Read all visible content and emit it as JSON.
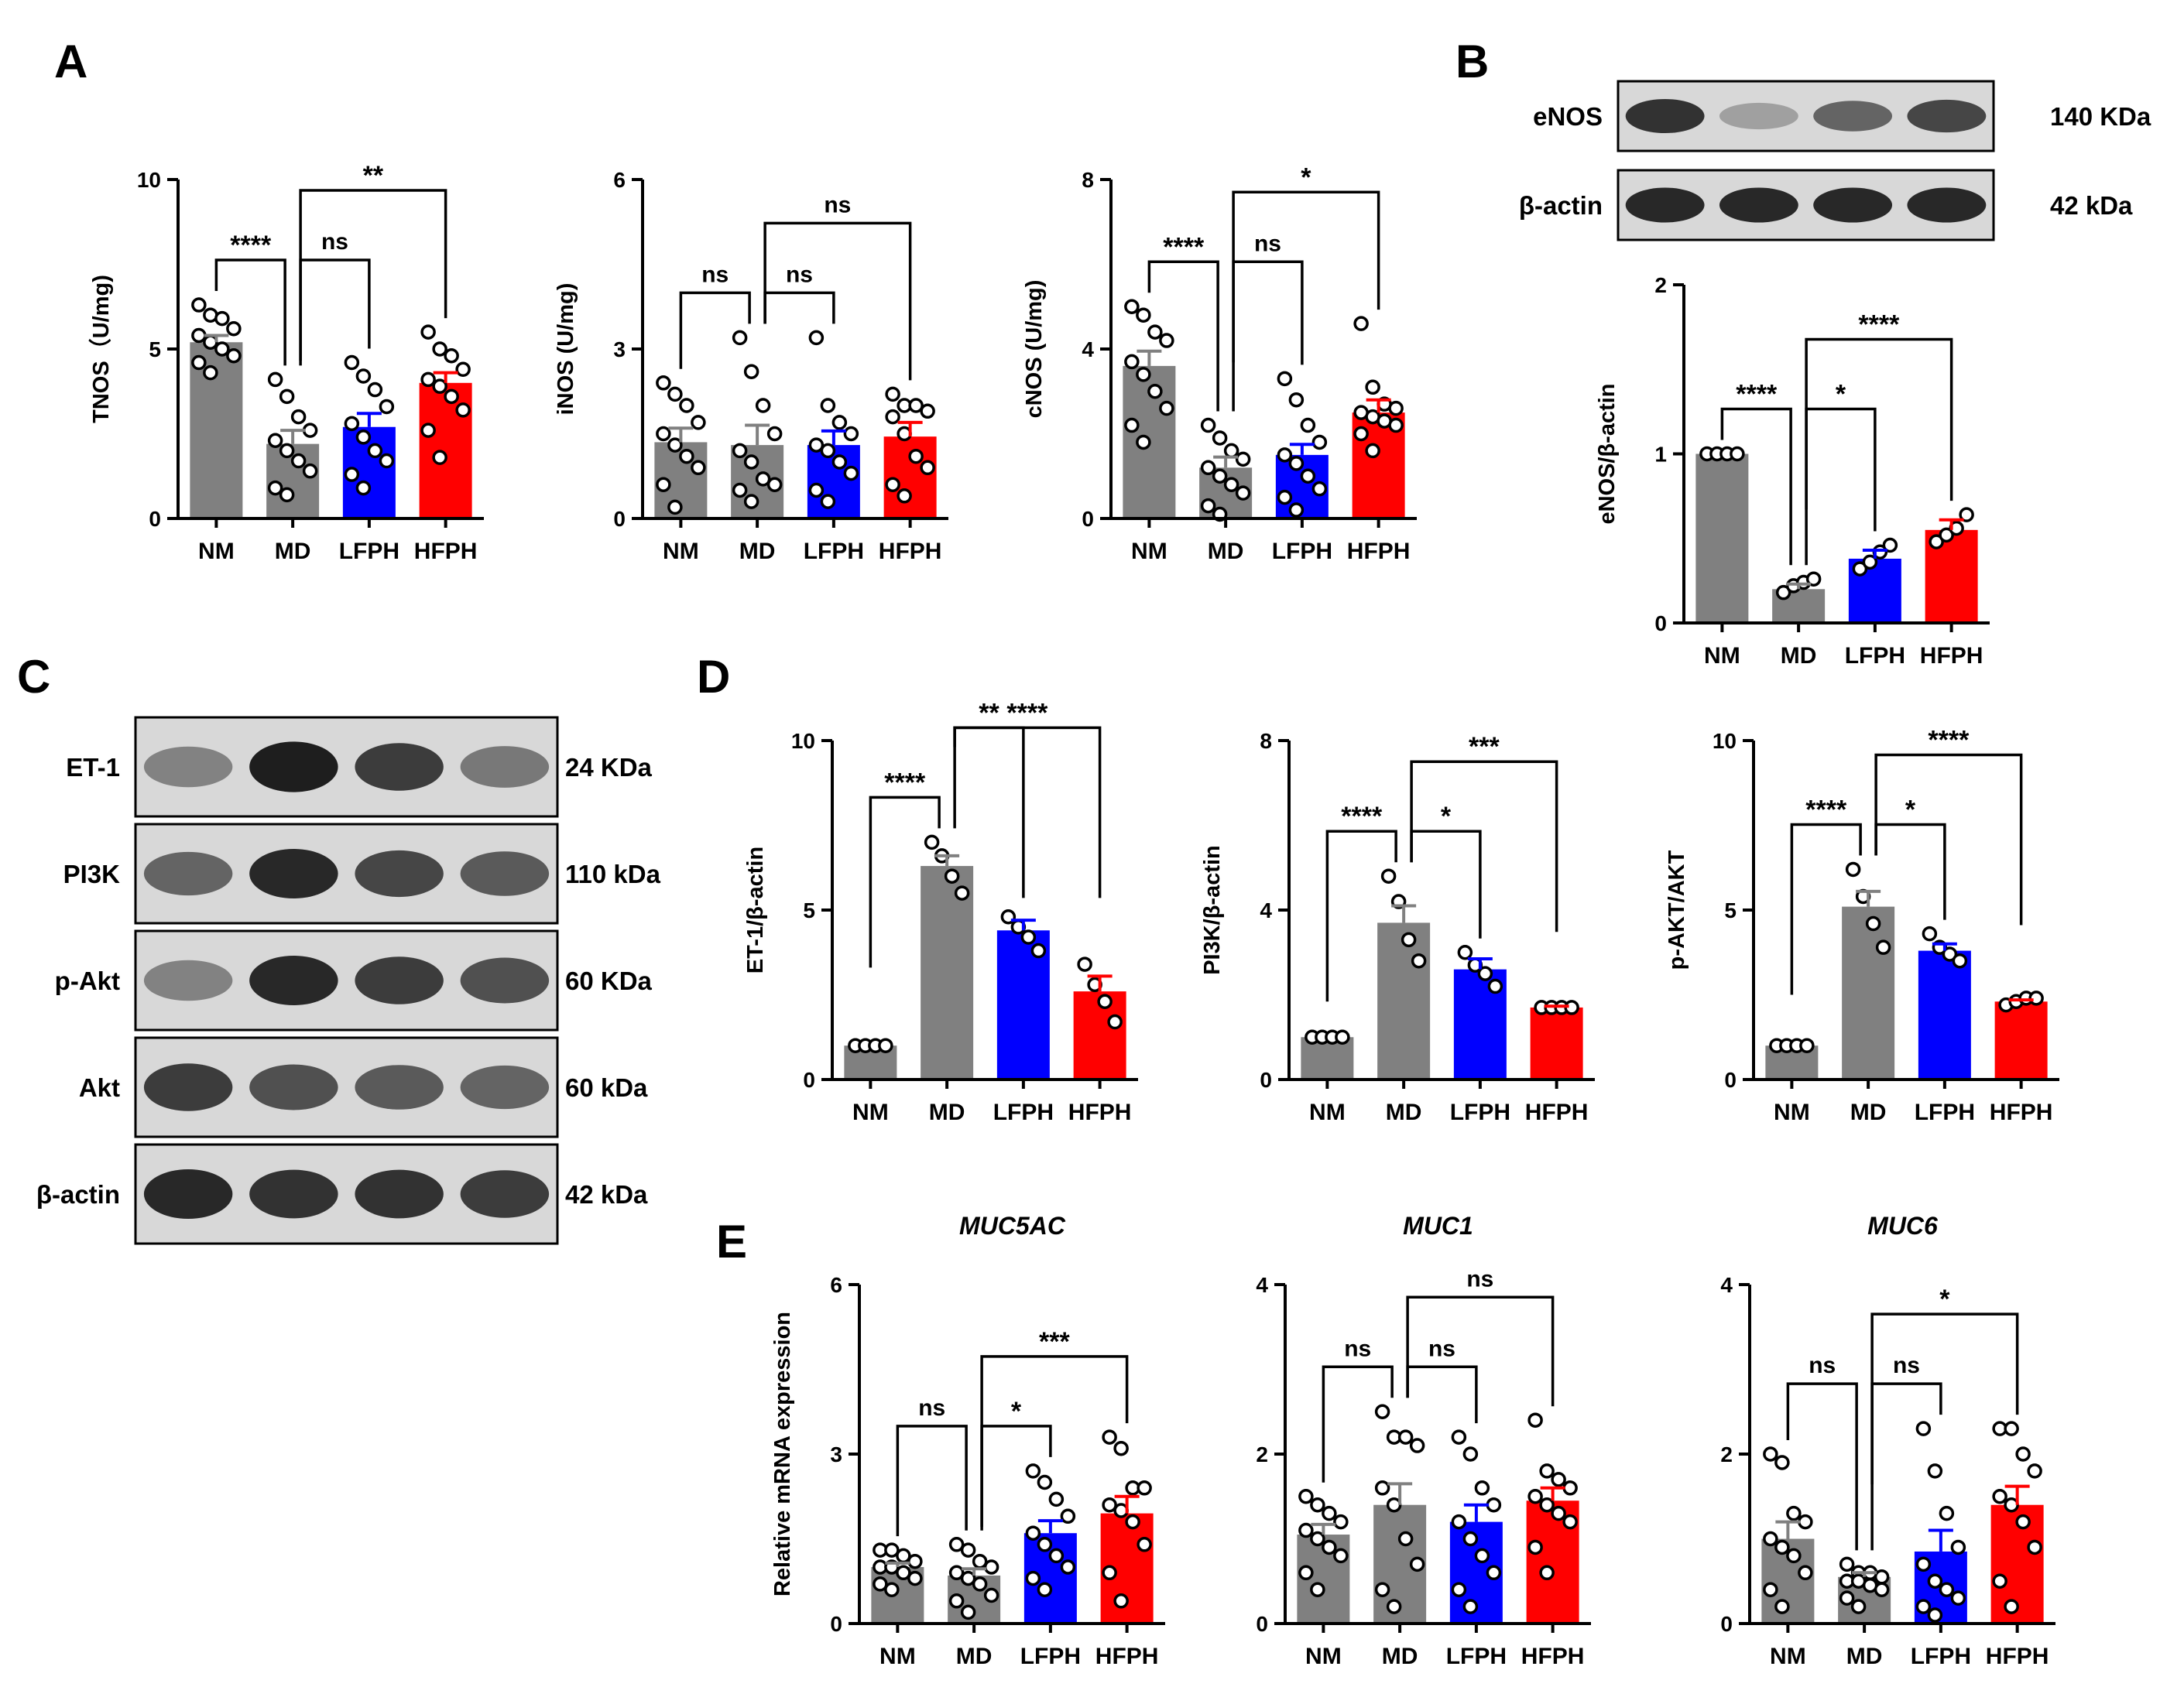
{
  "colors": {
    "NM": "#808080",
    "MD": "#808080",
    "LFPH": "#0000ff",
    "HFPH": "#ff0000"
  },
  "panel_labels": [
    "A",
    "B",
    "C",
    "D",
    "E"
  ],
  "chart_data": [
    {
      "id": "tnos",
      "type": "bar",
      "panel": "A",
      "title": "",
      "ylabel": "TNOS（U/mg)",
      "categories": [
        "NM",
        "MD",
        "LFPH",
        "HFPH"
      ],
      "yticks": [
        0,
        5,
        10
      ],
      "ylim": [
        0,
        10
      ],
      "values": [
        5.2,
        2.2,
        2.7,
        4.0
      ],
      "errors": [
        0.2,
        0.4,
        0.4,
        0.3
      ],
      "points": [
        [
          6.3,
          6.0,
          5.9,
          5.6,
          5.4,
          5.2,
          5.0,
          4.8,
          4.6,
          4.3
        ],
        [
          4.1,
          3.6,
          3.0,
          2.6,
          2.3,
          2.0,
          1.7,
          1.4,
          0.9,
          0.7
        ],
        [
          4.6,
          4.2,
          3.8,
          3.3,
          2.8,
          2.4,
          2.0,
          1.7,
          1.3,
          0.9
        ],
        [
          5.5,
          5.0,
          4.8,
          4.4,
          4.1,
          3.9,
          3.6,
          3.2,
          2.6,
          1.8
        ]
      ],
      "comparisons": [
        {
          "from": 0,
          "to": 1,
          "label": "****"
        },
        {
          "from": 1,
          "to": 2,
          "label": "ns"
        },
        {
          "from": 1,
          "to": 3,
          "label": "**"
        }
      ]
    },
    {
      "id": "inos",
      "type": "bar",
      "panel": "A",
      "title": "",
      "ylabel": "iNOS (U/mg)",
      "categories": [
        "NM",
        "MD",
        "LFPH",
        "HFPH"
      ],
      "yticks": [
        0,
        3,
        6
      ],
      "ylim": [
        0,
        6
      ],
      "values": [
        1.35,
        1.3,
        1.3,
        1.45
      ],
      "errors": [
        0.25,
        0.35,
        0.25,
        0.25
      ],
      "points": [
        [
          2.4,
          2.2,
          2.0,
          1.7,
          1.5,
          1.3,
          1.1,
          0.9,
          0.6,
          0.2
        ],
        [
          3.2,
          2.6,
          2.0,
          1.5,
          1.2,
          1.0,
          0.7,
          0.6,
          0.5,
          0.3
        ],
        [
          3.2,
          2.0,
          1.7,
          1.5,
          1.3,
          1.2,
          1.0,
          0.8,
          0.5,
          0.3
        ],
        [
          2.2,
          2.0,
          2.0,
          1.9,
          1.8,
          1.5,
          1.1,
          0.9,
          0.6,
          0.4
        ]
      ],
      "comparisons": [
        {
          "from": 0,
          "to": 1,
          "label": "ns"
        },
        {
          "from": 1,
          "to": 2,
          "label": "ns"
        },
        {
          "from": 1,
          "to": 3,
          "label": "ns"
        }
      ]
    },
    {
      "id": "cnos",
      "type": "bar",
      "panel": "A",
      "title": "",
      "ylabel": "cNOS (U/mg)",
      "categories": [
        "NM",
        "MD",
        "LFPH",
        "HFPH"
      ],
      "yticks": [
        0,
        4,
        8
      ],
      "ylim": [
        0,
        8
      ],
      "values": [
        3.6,
        1.2,
        1.5,
        2.5
      ],
      "errors": [
        0.35,
        0.25,
        0.25,
        0.3
      ],
      "points": [
        [
          5.0,
          4.8,
          4.4,
          4.2,
          3.7,
          3.4,
          3.0,
          2.6,
          2.2,
          1.8
        ],
        [
          2.2,
          1.9,
          1.6,
          1.4,
          1.2,
          1.0,
          0.8,
          0.6,
          0.3,
          0.1
        ],
        [
          3.3,
          2.8,
          2.2,
          1.8,
          1.5,
          1.3,
          1.0,
          0.7,
          0.5,
          0.2
        ],
        [
          4.6,
          3.1,
          2.7,
          2.6,
          2.5,
          2.4,
          2.3,
          2.2,
          2.0,
          1.6
        ]
      ],
      "comparisons": [
        {
          "from": 0,
          "to": 1,
          "label": "****"
        },
        {
          "from": 1,
          "to": 2,
          "label": "ns"
        },
        {
          "from": 1,
          "to": 3,
          "label": "*"
        }
      ]
    },
    {
      "id": "enos",
      "type": "bar",
      "panel": "B",
      "title": "",
      "ylabel": "eNOS/β-actin",
      "categories": [
        "NM",
        "MD",
        "LFPH",
        "HFPH"
      ],
      "yticks": [
        0,
        1,
        2
      ],
      "ylim": [
        0,
        2
      ],
      "values": [
        1.0,
        0.2,
        0.38,
        0.55
      ],
      "errors": [
        0.0,
        0.03,
        0.05,
        0.06
      ],
      "points": [
        [
          1.0,
          1.0,
          1.0,
          1.0
        ],
        [
          0.18,
          0.22,
          0.24,
          0.26
        ],
        [
          0.32,
          0.36,
          0.42,
          0.46
        ],
        [
          0.48,
          0.52,
          0.56,
          0.64
        ]
      ],
      "comparisons": [
        {
          "from": 0,
          "to": 1,
          "label": "****"
        },
        {
          "from": 1,
          "to": 2,
          "label": "*"
        },
        {
          "from": 1,
          "to": 3,
          "label": "****"
        }
      ]
    },
    {
      "id": "et1",
      "type": "bar",
      "panel": "D",
      "title": "",
      "ylabel": "ET-1/β-actin",
      "categories": [
        "NM",
        "MD",
        "LFPH",
        "HFPH"
      ],
      "yticks": [
        0,
        5,
        10
      ],
      "ylim": [
        0,
        10
      ],
      "values": [
        1.0,
        6.3,
        4.4,
        2.6
      ],
      "errors": [
        0.0,
        0.3,
        0.3,
        0.45
      ],
      "points": [
        [
          1.0,
          1.0,
          1.0,
          1.0
        ],
        [
          7.0,
          6.6,
          6.0,
          5.5
        ],
        [
          4.8,
          4.5,
          4.2,
          3.8
        ],
        [
          3.4,
          2.8,
          2.3,
          1.7
        ]
      ],
      "comparisons": [
        {
          "from": 0,
          "to": 1,
          "label": "****"
        },
        {
          "from": 1,
          "to": 2,
          "label": "**",
          "above": true
        },
        {
          "from": 1,
          "to": 3,
          "label": "****"
        }
      ]
    },
    {
      "id": "pi3k",
      "type": "bar",
      "panel": "D",
      "title": "",
      "ylabel": "PI3K/β-actin",
      "categories": [
        "NM",
        "MD",
        "LFPH",
        "HFPH"
      ],
      "yticks": [
        0,
        4,
        8
      ],
      "ylim": [
        0,
        8
      ],
      "values": [
        1.0,
        3.7,
        2.6,
        1.7
      ],
      "errors": [
        0.0,
        0.4,
        0.25,
        0.03
      ],
      "points": [
        [
          1.0,
          1.0,
          1.0,
          1.0
        ],
        [
          4.8,
          4.2,
          3.3,
          2.8
        ],
        [
          3.0,
          2.7,
          2.5,
          2.2
        ],
        [
          1.7,
          1.7,
          1.7,
          1.7
        ]
      ],
      "comparisons": [
        {
          "from": 0,
          "to": 1,
          "label": "****"
        },
        {
          "from": 1,
          "to": 2,
          "label": "*"
        },
        {
          "from": 1,
          "to": 3,
          "label": "***"
        }
      ]
    },
    {
      "id": "pakt",
      "type": "bar",
      "panel": "D",
      "title": "",
      "ylabel": "p-AKT/AKT",
      "categories": [
        "NM",
        "MD",
        "LFPH",
        "HFPH"
      ],
      "yticks": [
        0,
        5,
        10
      ],
      "ylim": [
        0,
        10
      ],
      "values": [
        1.0,
        5.1,
        3.8,
        2.3
      ],
      "errors": [
        0.0,
        0.45,
        0.2,
        0.05
      ],
      "points": [
        [
          1.0,
          1.0,
          1.0,
          1.0
        ],
        [
          6.2,
          5.4,
          4.6,
          3.9
        ],
        [
          4.3,
          3.9,
          3.7,
          3.5
        ],
        [
          2.2,
          2.3,
          2.4,
          2.4
        ]
      ],
      "comparisons": [
        {
          "from": 0,
          "to": 1,
          "label": "****"
        },
        {
          "from": 1,
          "to": 2,
          "label": "*"
        },
        {
          "from": 1,
          "to": 3,
          "label": "****"
        }
      ]
    },
    {
      "id": "muc5ac",
      "type": "bar",
      "panel": "E",
      "title": "MUC5AC",
      "ylabel": "Relative mRNA expression",
      "categories": [
        "NM",
        "MD",
        "LFPH",
        "HFPH"
      ],
      "yticks": [
        0,
        3,
        6
      ],
      "ylim": [
        0,
        6
      ],
      "values": [
        1.0,
        0.85,
        1.6,
        1.95
      ],
      "errors": [
        0.07,
        0.12,
        0.22,
        0.3
      ],
      "points": [
        [
          1.3,
          1.3,
          1.2,
          1.1,
          1.0,
          1.0,
          0.9,
          0.8,
          0.7,
          0.6
        ],
        [
          1.4,
          1.3,
          1.1,
          1.0,
          0.9,
          0.8,
          0.7,
          0.5,
          0.4,
          0.2
        ],
        [
          2.7,
          2.5,
          2.2,
          1.9,
          1.6,
          1.4,
          1.2,
          1.0,
          0.8,
          0.6
        ],
        [
          3.3,
          3.1,
          2.4,
          2.4,
          2.1,
          2.0,
          1.8,
          1.4,
          0.9,
          0.4
        ]
      ],
      "comparisons": [
        {
          "from": 0,
          "to": 1,
          "label": "ns"
        },
        {
          "from": 1,
          "to": 2,
          "label": "*"
        },
        {
          "from": 1,
          "to": 3,
          "label": "***"
        }
      ]
    },
    {
      "id": "muc1",
      "type": "bar",
      "panel": "E",
      "title": "MUC1",
      "ylabel": "",
      "categories": [
        "NM",
        "MD",
        "LFPH",
        "HFPH"
      ],
      "yticks": [
        0,
        2,
        4
      ],
      "ylim": [
        0,
        4
      ],
      "values": [
        1.05,
        1.4,
        1.2,
        1.45
      ],
      "errors": [
        0.12,
        0.25,
        0.2,
        0.15
      ],
      "points": [
        [
          1.5,
          1.4,
          1.3,
          1.2,
          1.1,
          1.0,
          0.9,
          0.8,
          0.6,
          0.4
        ],
        [
          2.5,
          2.2,
          2.2,
          2.1,
          1.6,
          1.4,
          1.0,
          0.7,
          0.4,
          0.2
        ],
        [
          2.2,
          2.0,
          1.6,
          1.4,
          1.2,
          1.0,
          0.8,
          0.6,
          0.4,
          0.2
        ],
        [
          2.4,
          1.8,
          1.7,
          1.6,
          1.5,
          1.4,
          1.3,
          1.2,
          0.9,
          0.6
        ]
      ],
      "comparisons": [
        {
          "from": 0,
          "to": 1,
          "label": "ns"
        },
        {
          "from": 1,
          "to": 2,
          "label": "ns"
        },
        {
          "from": 1,
          "to": 3,
          "label": "ns"
        }
      ]
    },
    {
      "id": "muc6",
      "type": "bar",
      "panel": "E",
      "title": "MUC6",
      "ylabel": "",
      "categories": [
        "NM",
        "MD",
        "LFPH",
        "HFPH"
      ],
      "yticks": [
        0,
        2,
        4
      ],
      "ylim": [
        0,
        4
      ],
      "values": [
        1.0,
        0.55,
        0.85,
        1.4
      ],
      "errors": [
        0.2,
        0.05,
        0.25,
        0.22
      ],
      "points": [
        [
          2.0,
          1.9,
          1.3,
          1.2,
          1.0,
          0.9,
          0.8,
          0.6,
          0.4,
          0.2
        ],
        [
          0.7,
          0.6,
          0.6,
          0.55,
          0.5,
          0.5,
          0.45,
          0.4,
          0.3,
          0.2
        ],
        [
          2.3,
          1.8,
          1.3,
          0.9,
          0.7,
          0.5,
          0.4,
          0.3,
          0.2,
          0.1
        ],
        [
          2.3,
          2.3,
          2.0,
          1.8,
          1.5,
          1.4,
          1.2,
          0.9,
          0.5,
          0.2
        ]
      ],
      "comparisons": [
        {
          "from": 0,
          "to": 1,
          "label": "ns"
        },
        {
          "from": 1,
          "to": 2,
          "label": "ns"
        },
        {
          "from": 1,
          "to": 3,
          "label": "*"
        }
      ]
    }
  ],
  "blots": {
    "B": [
      {
        "protein": "eNOS",
        "size": "140 KDa",
        "intensity": [
          0.85,
          0.3,
          0.6,
          0.75
        ]
      },
      {
        "protein": "β-actin",
        "size": "42 kDa",
        "intensity": [
          0.9,
          0.9,
          0.9,
          0.9
        ]
      }
    ],
    "C": [
      {
        "protein": "ET-1",
        "size": "24 KDa",
        "intensity": [
          0.45,
          0.95,
          0.8,
          0.5
        ]
      },
      {
        "protein": "PI3K",
        "size": "110 kDa",
        "intensity": [
          0.6,
          0.9,
          0.75,
          0.65
        ]
      },
      {
        "protein": "p-Akt",
        "size": "60 KDa",
        "intensity": [
          0.45,
          0.9,
          0.8,
          0.7
        ]
      },
      {
        "protein": "Akt",
        "size": "60 kDa",
        "intensity": [
          0.8,
          0.7,
          0.65,
          0.6
        ]
      },
      {
        "protein": "β-actin",
        "size": "42 kDa",
        "intensity": [
          0.9,
          0.85,
          0.85,
          0.8
        ]
      }
    ]
  }
}
